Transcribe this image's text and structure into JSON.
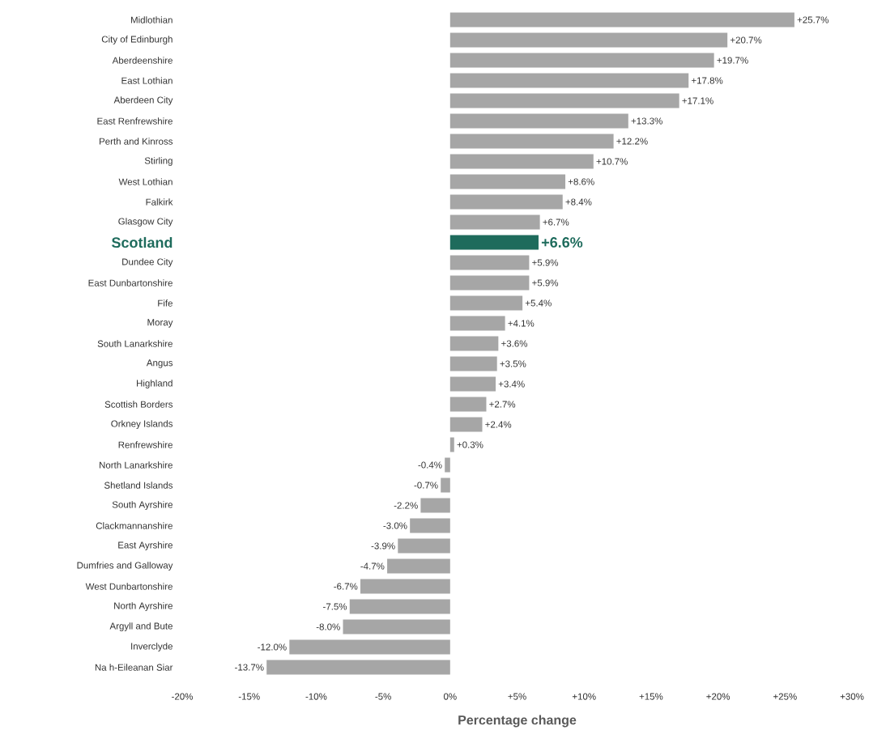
{
  "chart_data": {
    "type": "bar",
    "orientation": "horizontal",
    "xlabel": "Percentage change",
    "categories": [
      "Midlothian",
      "City of Edinburgh",
      "Aberdeenshire",
      "East Lothian",
      "Aberdeen City",
      "East Renfrewshire",
      "Perth and Kinross",
      "Stirling",
      "West Lothian",
      "Falkirk",
      "Glasgow City",
      "Scotland",
      "Dundee City",
      "East Dunbartonshire",
      "Fife",
      "Moray",
      "South Lanarkshire",
      "Angus",
      "Highland",
      "Scottish Borders",
      "Orkney Islands",
      "Renfrewshire",
      "North Lanarkshire",
      "Shetland Islands",
      "South Ayrshire",
      "Clackmannanshire",
      "East Ayrshire",
      "Dumfries and Galloway",
      "West Dunbartonshire",
      "North Ayrshire",
      "Argyll and Bute",
      "Inverclyde",
      "Na h-Eileanan Siar"
    ],
    "values": [
      25.7,
      20.7,
      19.7,
      17.8,
      17.1,
      13.3,
      12.2,
      10.7,
      8.6,
      8.4,
      6.7,
      6.6,
      5.9,
      5.9,
      5.4,
      4.1,
      3.6,
      3.5,
      3.4,
      2.7,
      2.4,
      0.3,
      -0.4,
      -0.7,
      -2.2,
      -3.0,
      -3.9,
      -4.7,
      -6.7,
      -7.5,
      -8.0,
      -12.0,
      -13.7
    ],
    "value_labels": [
      "+25.7%",
      "+20.7%",
      "+19.7%",
      "+17.8%",
      "+17.1%",
      "+13.3%",
      "+12.2%",
      "+10.7%",
      "+8.6%",
      "+8.4%",
      "+6.7%",
      "+6.6%",
      "+5.9%",
      "+5.9%",
      "+5.4%",
      "+4.1%",
      "+3.6%",
      "+3.5%",
      "+3.4%",
      "+2.7%",
      "+2.4%",
      "+0.3%",
      "-0.4%",
      "-0.7%",
      "-2.2%",
      "-3.0%",
      "-3.9%",
      "-4.7%",
      "-6.7%",
      "-7.5%",
      "-8.0%",
      "-12.0%",
      "-13.7%"
    ],
    "colors": [
      "#a6a6a6",
      "#a6a6a6",
      "#a6a6a6",
      "#a6a6a6",
      "#a6a6a6",
      "#a6a6a6",
      "#a6a6a6",
      "#a6a6a6",
      "#a6a6a6",
      "#a6a6a6",
      "#a6a6a6",
      "#1e6b5c",
      "#a6a6a6",
      "#a6a6a6",
      "#a6a6a6",
      "#a6a6a6",
      "#a6a6a6",
      "#a6a6a6",
      "#a6a6a6",
      "#a6a6a6",
      "#a6a6a6",
      "#a6a6a6",
      "#a6a6a6",
      "#a6a6a6",
      "#a6a6a6",
      "#a6a6a6",
      "#a6a6a6",
      "#a6a6a6",
      "#a6a6a6",
      "#a6a6a6",
      "#a6a6a6",
      "#a6a6a6",
      "#a6a6a6"
    ],
    "xlim": [
      -20,
      30
    ],
    "xticks": [
      {
        "value": -20,
        "label": "-20%"
      },
      {
        "value": -15,
        "label": "-15%"
      },
      {
        "value": -10,
        "label": "-10%"
      },
      {
        "value": -5,
        "label": "-5%"
      },
      {
        "value": 0,
        "label": "0%"
      },
      {
        "value": 5,
        "label": "+5%"
      },
      {
        "value": 10,
        "label": "+10%"
      },
      {
        "value": 15,
        "label": "+15%"
      },
      {
        "value": 20,
        "label": "+20%"
      },
      {
        "value": 25,
        "label": "+25%"
      },
      {
        "value": 30,
        "label": "+30%"
      }
    ]
  }
}
